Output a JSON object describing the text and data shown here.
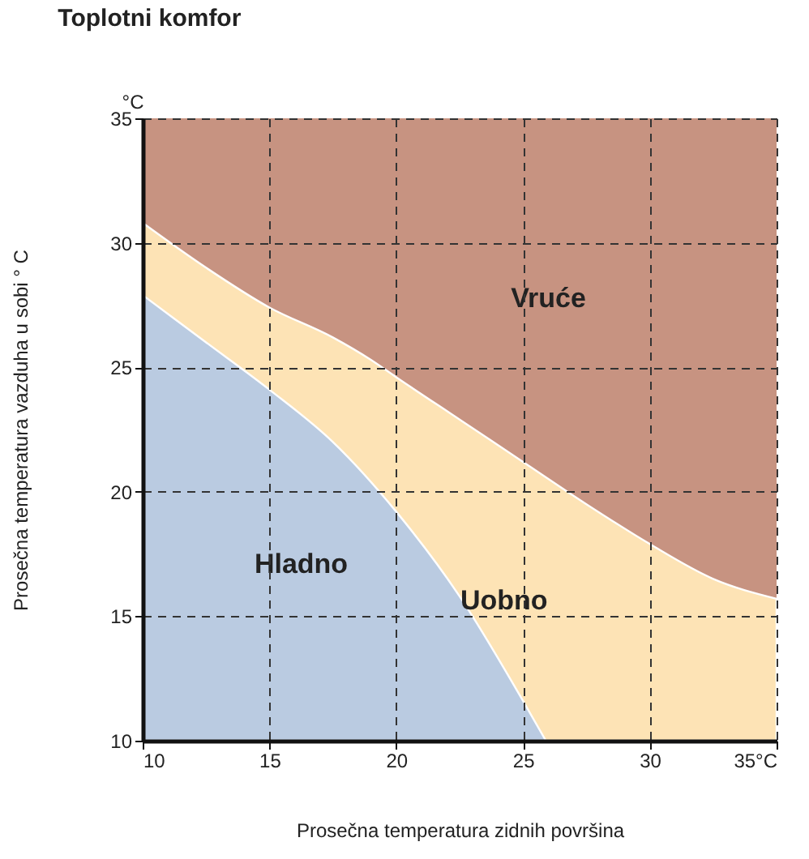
{
  "chart_data": {
    "type": "area",
    "title": "Toplotni komfor",
    "xlabel": "Prosečna temperatura zidnih površina",
    "ylabel": "Prosečna temperatura vazduha u sobi ° C",
    "xlim": [
      10,
      35
    ],
    "ylim": [
      10,
      35
    ],
    "xticks": [
      10,
      15,
      20,
      25,
      30,
      {
        "value": 35,
        "label": "35°C"
      }
    ],
    "yticks": [
      10,
      15,
      20,
      25,
      30,
      35
    ],
    "grid": true,
    "bands": [
      {
        "axis": "y",
        "from": 10,
        "to": 35,
        "label": "Vruće",
        "color": "#c79381"
      }
    ],
    "series": [
      {
        "name": "Uobno",
        "color": "#fde3b5",
        "x": [
          10,
          12.5,
          15,
          17.5,
          19,
          20,
          22.5,
          25,
          27.5,
          30,
          32.5,
          35
        ],
        "values": [
          30.8,
          29.0,
          27.4,
          26.2,
          25.3,
          24.6,
          22.9,
          21.2,
          19.5,
          17.9,
          16.5,
          15.7
        ]
      },
      {
        "name": "Hladno",
        "color": "#bacbe1",
        "x": [
          10,
          12.5,
          15,
          17.5,
          20,
          22.5,
          25,
          25.9
        ],
        "values": [
          27.9,
          26.0,
          24.1,
          22.0,
          19.2,
          15.8,
          11.6,
          10
        ]
      }
    ],
    "annotations": [
      "°C"
    ]
  }
}
